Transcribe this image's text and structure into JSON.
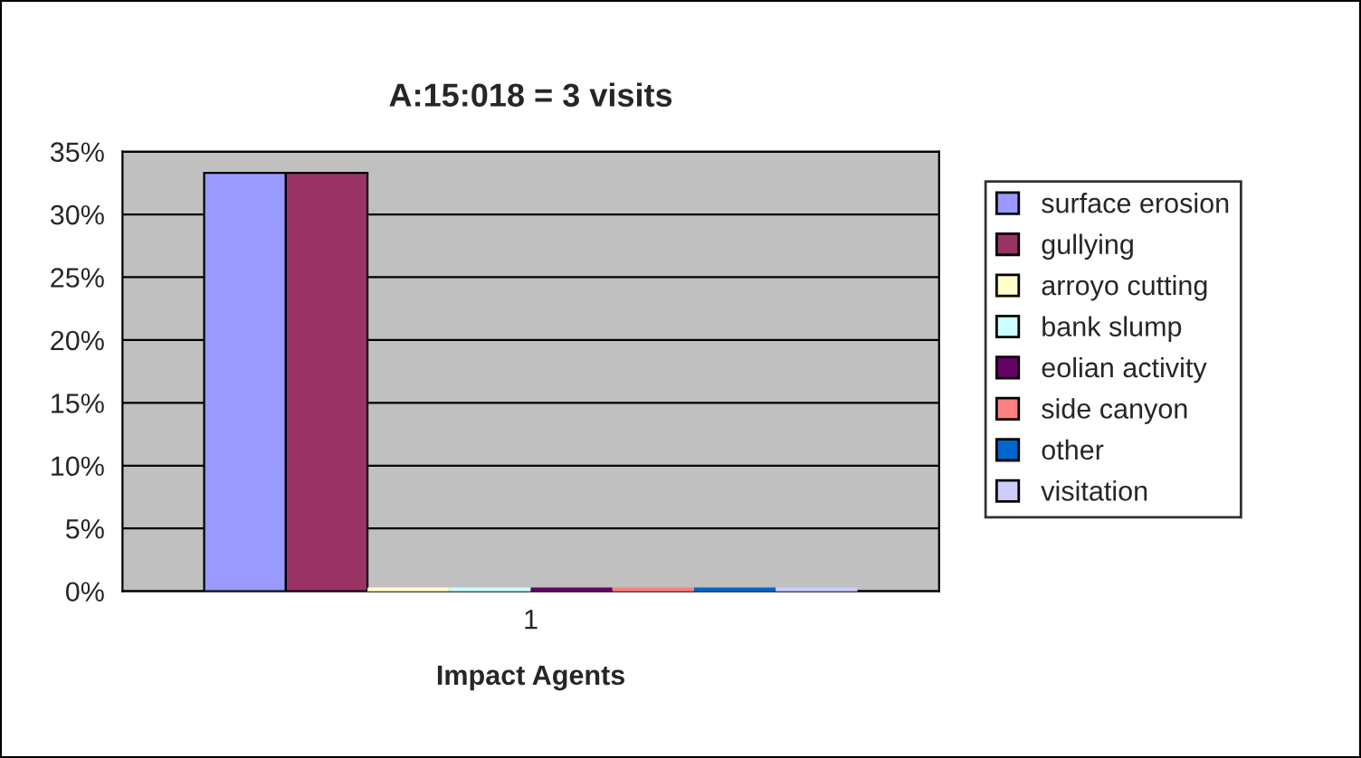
{
  "chart_data": {
    "type": "bar",
    "title": "A:15:018 = 3 visits",
    "xlabel": "Impact Agents",
    "categories": [
      "1"
    ],
    "series": [
      {
        "name": "surface erosion",
        "color": "#9999ff",
        "values": [
          33.3
        ]
      },
      {
        "name": "gullying",
        "color": "#993366",
        "values": [
          33.3
        ]
      },
      {
        "name": "arroyo cutting",
        "color": "#ffffcc",
        "values": [
          0
        ]
      },
      {
        "name": "bank slump",
        "color": "#ccffff",
        "values": [
          0
        ]
      },
      {
        "name": "eolian activity",
        "color": "#660066",
        "values": [
          0
        ]
      },
      {
        "name": "side canyon",
        "color": "#ff8080",
        "values": [
          0
        ]
      },
      {
        "name": "other",
        "color": "#0066cc",
        "values": [
          0
        ]
      },
      {
        "name": "visitation",
        "color": "#ccccff",
        "values": [
          0
        ]
      }
    ],
    "ylim": [
      0,
      35
    ],
    "yticks": [
      {
        "value": 0,
        "label": "0%"
      },
      {
        "value": 5,
        "label": "5%"
      },
      {
        "value": 10,
        "label": "10%"
      },
      {
        "value": 15,
        "label": "15%"
      },
      {
        "value": 20,
        "label": "20%"
      },
      {
        "value": 25,
        "label": "25%"
      },
      {
        "value": 30,
        "label": "30%"
      },
      {
        "value": 35,
        "label": "35%"
      }
    ],
    "grid": "y",
    "legend": "right"
  }
}
